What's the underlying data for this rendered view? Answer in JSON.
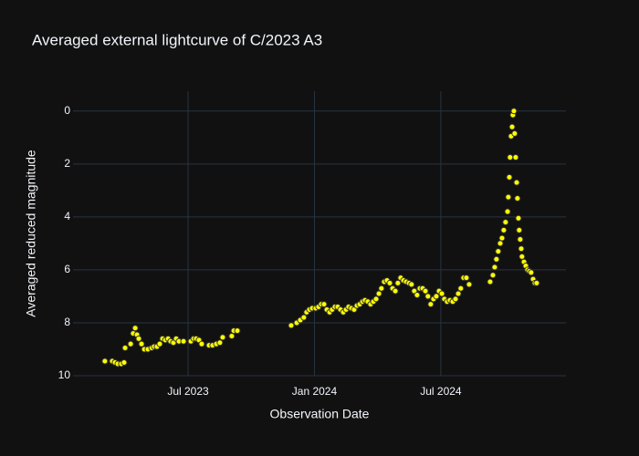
{
  "chart_data": {
    "type": "scatter",
    "title": "Averaged external lightcurve of C/2023 A3",
    "x_label": "Observation Date",
    "y_label": "Averaged reduced magnitude",
    "color": "#ffff00",
    "grid": true,
    "y_reversed": true,
    "xlim": [
      2023.045,
      2024.995
    ],
    "ylim": [
      10,
      -0.75
    ],
    "xticks": [
      {
        "value": 2023.5,
        "label": "Jul 2023"
      },
      {
        "value": 2024.0,
        "label": "Jan 2024"
      },
      {
        "value": 2024.5,
        "label": "Jul 2024"
      }
    ],
    "yticks": [
      0,
      2,
      4,
      6,
      8,
      10
    ],
    "x": [
      2023.171,
      2023.2,
      2023.211,
      2023.222,
      2023.236,
      2023.247,
      2023.251,
      2023.273,
      2023.283,
      2023.291,
      2023.298,
      2023.305,
      2023.316,
      2023.327,
      2023.341,
      2023.356,
      2023.366,
      2023.377,
      2023.388,
      2023.399,
      2023.41,
      2023.421,
      2023.431,
      2023.442,
      2023.453,
      2023.464,
      2023.482,
      2023.511,
      2023.522,
      2023.532,
      2023.543,
      2023.554,
      2023.583,
      2023.597,
      2023.612,
      2023.626,
      2023.637,
      2023.673,
      2023.681,
      2023.695,
      2023.908,
      2023.93,
      2023.944,
      2023.958,
      2023.969,
      2023.98,
      2023.991,
      2024.005,
      2024.016,
      2024.027,
      2024.038,
      2024.049,
      2024.06,
      2024.07,
      2024.081,
      2024.092,
      2024.103,
      2024.114,
      2024.125,
      2024.135,
      2024.146,
      2024.157,
      2024.168,
      2024.179,
      2024.19,
      2024.2,
      2024.211,
      2024.222,
      2024.233,
      2024.244,
      2024.255,
      2024.265,
      2024.276,
      2024.287,
      2024.298,
      2024.309,
      2024.32,
      2024.33,
      2024.341,
      2024.352,
      2024.363,
      2024.374,
      2024.384,
      2024.395,
      2024.406,
      2024.417,
      2024.428,
      2024.439,
      2024.449,
      2024.46,
      2024.471,
      2024.482,
      2024.493,
      2024.504,
      2024.514,
      2024.525,
      2024.536,
      2024.547,
      2024.558,
      2024.569,
      2024.579,
      2024.59,
      2024.601,
      2024.612,
      2024.695,
      2024.706,
      2024.713,
      2024.72,
      2024.727,
      2024.735,
      2024.742,
      2024.749,
      2024.756,
      2024.764,
      2024.767,
      2024.771,
      2024.774,
      2024.778,
      2024.782,
      2024.785,
      2024.789,
      2024.792,
      2024.796,
      2024.8,
      2024.803,
      2024.807,
      2024.81,
      2024.814,
      2024.818,
      2024.821,
      2024.829,
      2024.836,
      2024.843,
      2024.85,
      2024.857,
      2024.865,
      2024.872,
      2024.879
    ],
    "values": [
      9.45,
      9.45,
      9.5,
      9.55,
      9.55,
      9.5,
      8.95,
      8.8,
      8.4,
      8.2,
      8.45,
      8.6,
      8.8,
      9.0,
      9.0,
      8.95,
      8.9,
      8.9,
      8.8,
      8.6,
      8.65,
      8.6,
      8.7,
      8.75,
      8.6,
      8.7,
      8.7,
      8.7,
      8.6,
      8.6,
      8.65,
      8.8,
      8.85,
      8.85,
      8.8,
      8.75,
      8.55,
      8.5,
      8.3,
      8.3,
      8.1,
      8.0,
      7.9,
      7.8,
      7.6,
      7.5,
      7.45,
      7.45,
      7.4,
      7.3,
      7.3,
      7.5,
      7.6,
      7.5,
      7.4,
      7.4,
      7.5,
      7.6,
      7.5,
      7.4,
      7.45,
      7.5,
      7.35,
      7.3,
      7.2,
      7.15,
      7.2,
      7.3,
      7.2,
      7.1,
      6.9,
      6.7,
      6.45,
      6.4,
      6.5,
      6.7,
      6.8,
      6.5,
      6.3,
      6.4,
      6.45,
      6.5,
      6.55,
      6.8,
      6.95,
      6.7,
      6.7,
      6.8,
      7.0,
      7.3,
      7.1,
      7.0,
      6.8,
      6.9,
      7.1,
      7.2,
      7.15,
      7.2,
      7.1,
      6.9,
      6.7,
      6.3,
      6.3,
      6.55,
      6.45,
      6.2,
      5.9,
      5.6,
      5.3,
      5.0,
      4.8,
      4.5,
      4.2,
      3.8,
      3.25,
      2.5,
      1.75,
      0.95,
      0.6,
      0.15,
      0.0,
      0.85,
      1.75,
      2.7,
      3.3,
      4.05,
      4.5,
      4.85,
      5.2,
      5.5,
      5.7,
      5.85,
      6.0,
      6.05,
      6.1,
      6.35,
      6.5,
      6.5
    ]
  }
}
